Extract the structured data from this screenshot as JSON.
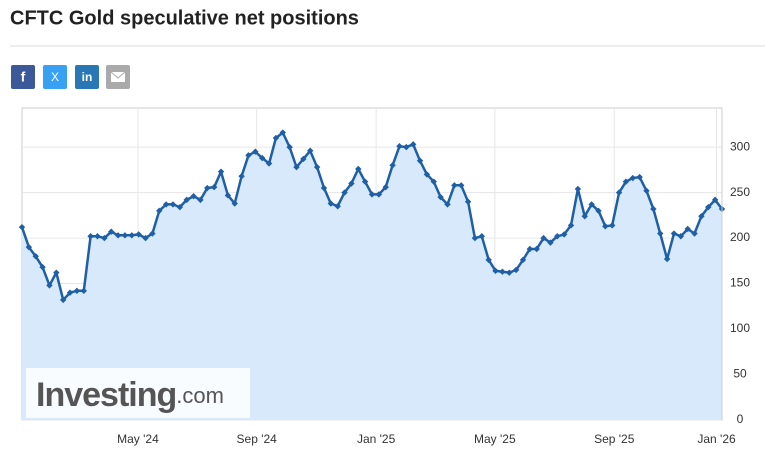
{
  "share_buttons": [
    "f",
    "X",
    "in"
  ],
  "watermark": {
    "brand": "Investing",
    "suffix": ".com"
  },
  "chart_data": {
    "type": "line",
    "title": "CFTC Gold speculative net positions",
    "color": "#1f5fa5",
    "fill": "#d7e9fb",
    "grid": true,
    "values": [
      212,
      190,
      180,
      168,
      148,
      162,
      132,
      140,
      142,
      142,
      202,
      202,
      200,
      207,
      203,
      203,
      203,
      204,
      200,
      205,
      230,
      237,
      237,
      234,
      242,
      246,
      242,
      255,
      256,
      273,
      247,
      238,
      268,
      291,
      295,
      288,
      282,
      310,
      316,
      300,
      278,
      287,
      296,
      278,
      255,
      238,
      235,
      250,
      260,
      276,
      262,
      248,
      248,
      256,
      280,
      301,
      300,
      303,
      285,
      270,
      262,
      245,
      237,
      258,
      258,
      240,
      200,
      202,
      176,
      164,
      163,
      162,
      165,
      176,
      188,
      188,
      200,
      195,
      202,
      204,
      214,
      254,
      224,
      237,
      230,
      213,
      214,
      250,
      262,
      266,
      267,
      252,
      232,
      205,
      177,
      205,
      202,
      210,
      205,
      224,
      234,
      242,
      232
    ],
    "xlim": [
      0,
      102
    ],
    "xticks": [
      {
        "value": 16.9,
        "label": "May '24"
      },
      {
        "value": 34.2,
        "label": "Sep '24"
      },
      {
        "value": 51.6,
        "label": "Jan '25"
      },
      {
        "value": 68.9,
        "label": "May '25"
      },
      {
        "value": 86.3,
        "label": "Sep '25"
      },
      {
        "value": 101.2,
        "label": "Jan '26"
      }
    ],
    "ylim": [
      0,
      343
    ],
    "yticks": [
      0,
      50,
      100,
      150,
      200,
      250,
      300
    ]
  }
}
